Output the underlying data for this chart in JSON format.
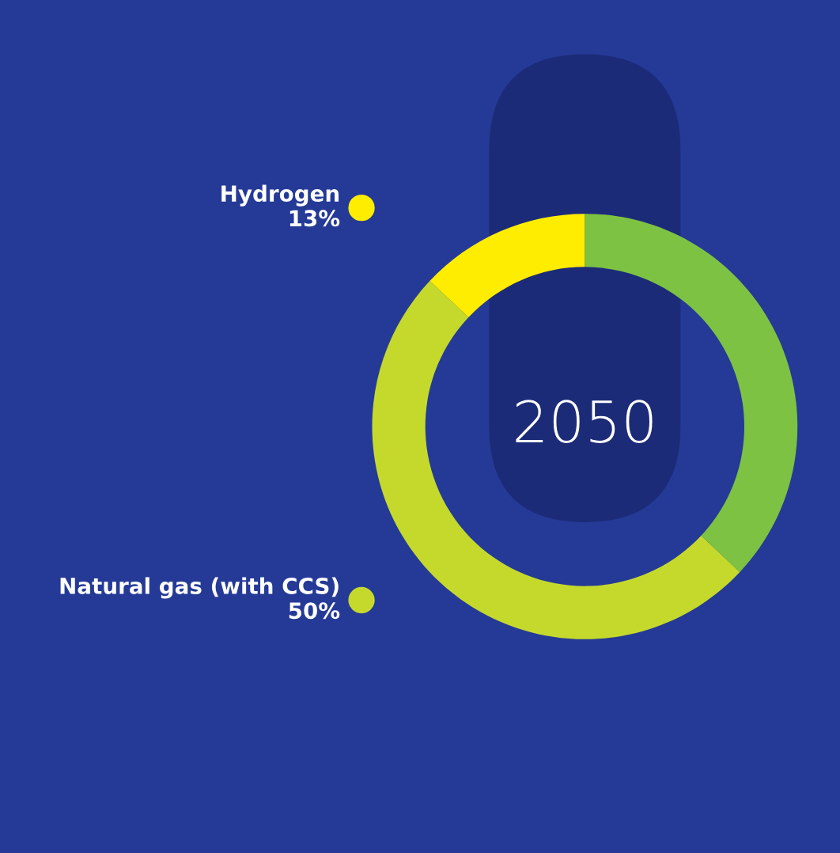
{
  "chart_data": {
    "type": "donut",
    "title": "2050",
    "categories": [
      null,
      "Natural gas (with CCS)",
      "Hydrogen"
    ],
    "values": [
      37,
      50,
      13
    ],
    "colors": [
      "#7dc242",
      "#c5d92d",
      "#ffed00"
    ],
    "value_labels": [
      null,
      "50%",
      "13%"
    ],
    "legend": "left"
  }
}
